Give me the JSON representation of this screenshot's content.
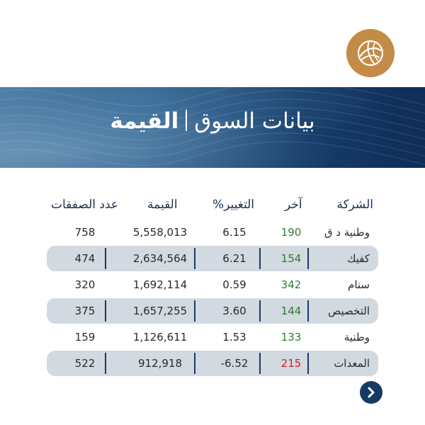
{
  "banner": {
    "title_regular": "بيانات السوق",
    "title_bold": "القيمة"
  },
  "table": {
    "headers": {
      "company": "الشركة",
      "last": "آخر",
      "change": "%التغيير",
      "value": "القيمة",
      "deals": "عدد الصفقات"
    },
    "rows": [
      {
        "company": "وطنية د ق",
        "last": "190",
        "change": "6.15",
        "value": "5,558,013",
        "deals": "758",
        "direction": "up"
      },
      {
        "company": "كفيك",
        "last": "154",
        "change": "6.21",
        "value": "2,634,564",
        "deals": "474",
        "direction": "up"
      },
      {
        "company": "سنام",
        "last": "342",
        "change": "0.59",
        "value": "1,692,114",
        "deals": "320",
        "direction": "up"
      },
      {
        "company": "التخصيص",
        "last": "144",
        "change": "3.60",
        "value": "1,657,255",
        "deals": "375",
        "direction": "up"
      },
      {
        "company": "وطنية",
        "last": "133",
        "change": "1.53",
        "value": "1,126,611",
        "deals": "159",
        "direction": "up"
      },
      {
        "company": "المعدات",
        "last": "215",
        "change": "-6.52",
        "value": "912,918",
        "deals": "522",
        "direction": "down"
      }
    ]
  },
  "colors": {
    "logo": "#c38b45",
    "navy": "#153a63",
    "up": "#2e7d32",
    "down": "#d32020",
    "row_shade": "#d3d9e0"
  },
  "icons": {
    "logo": "company-logo-icon",
    "next": "chevron-right-icon"
  }
}
